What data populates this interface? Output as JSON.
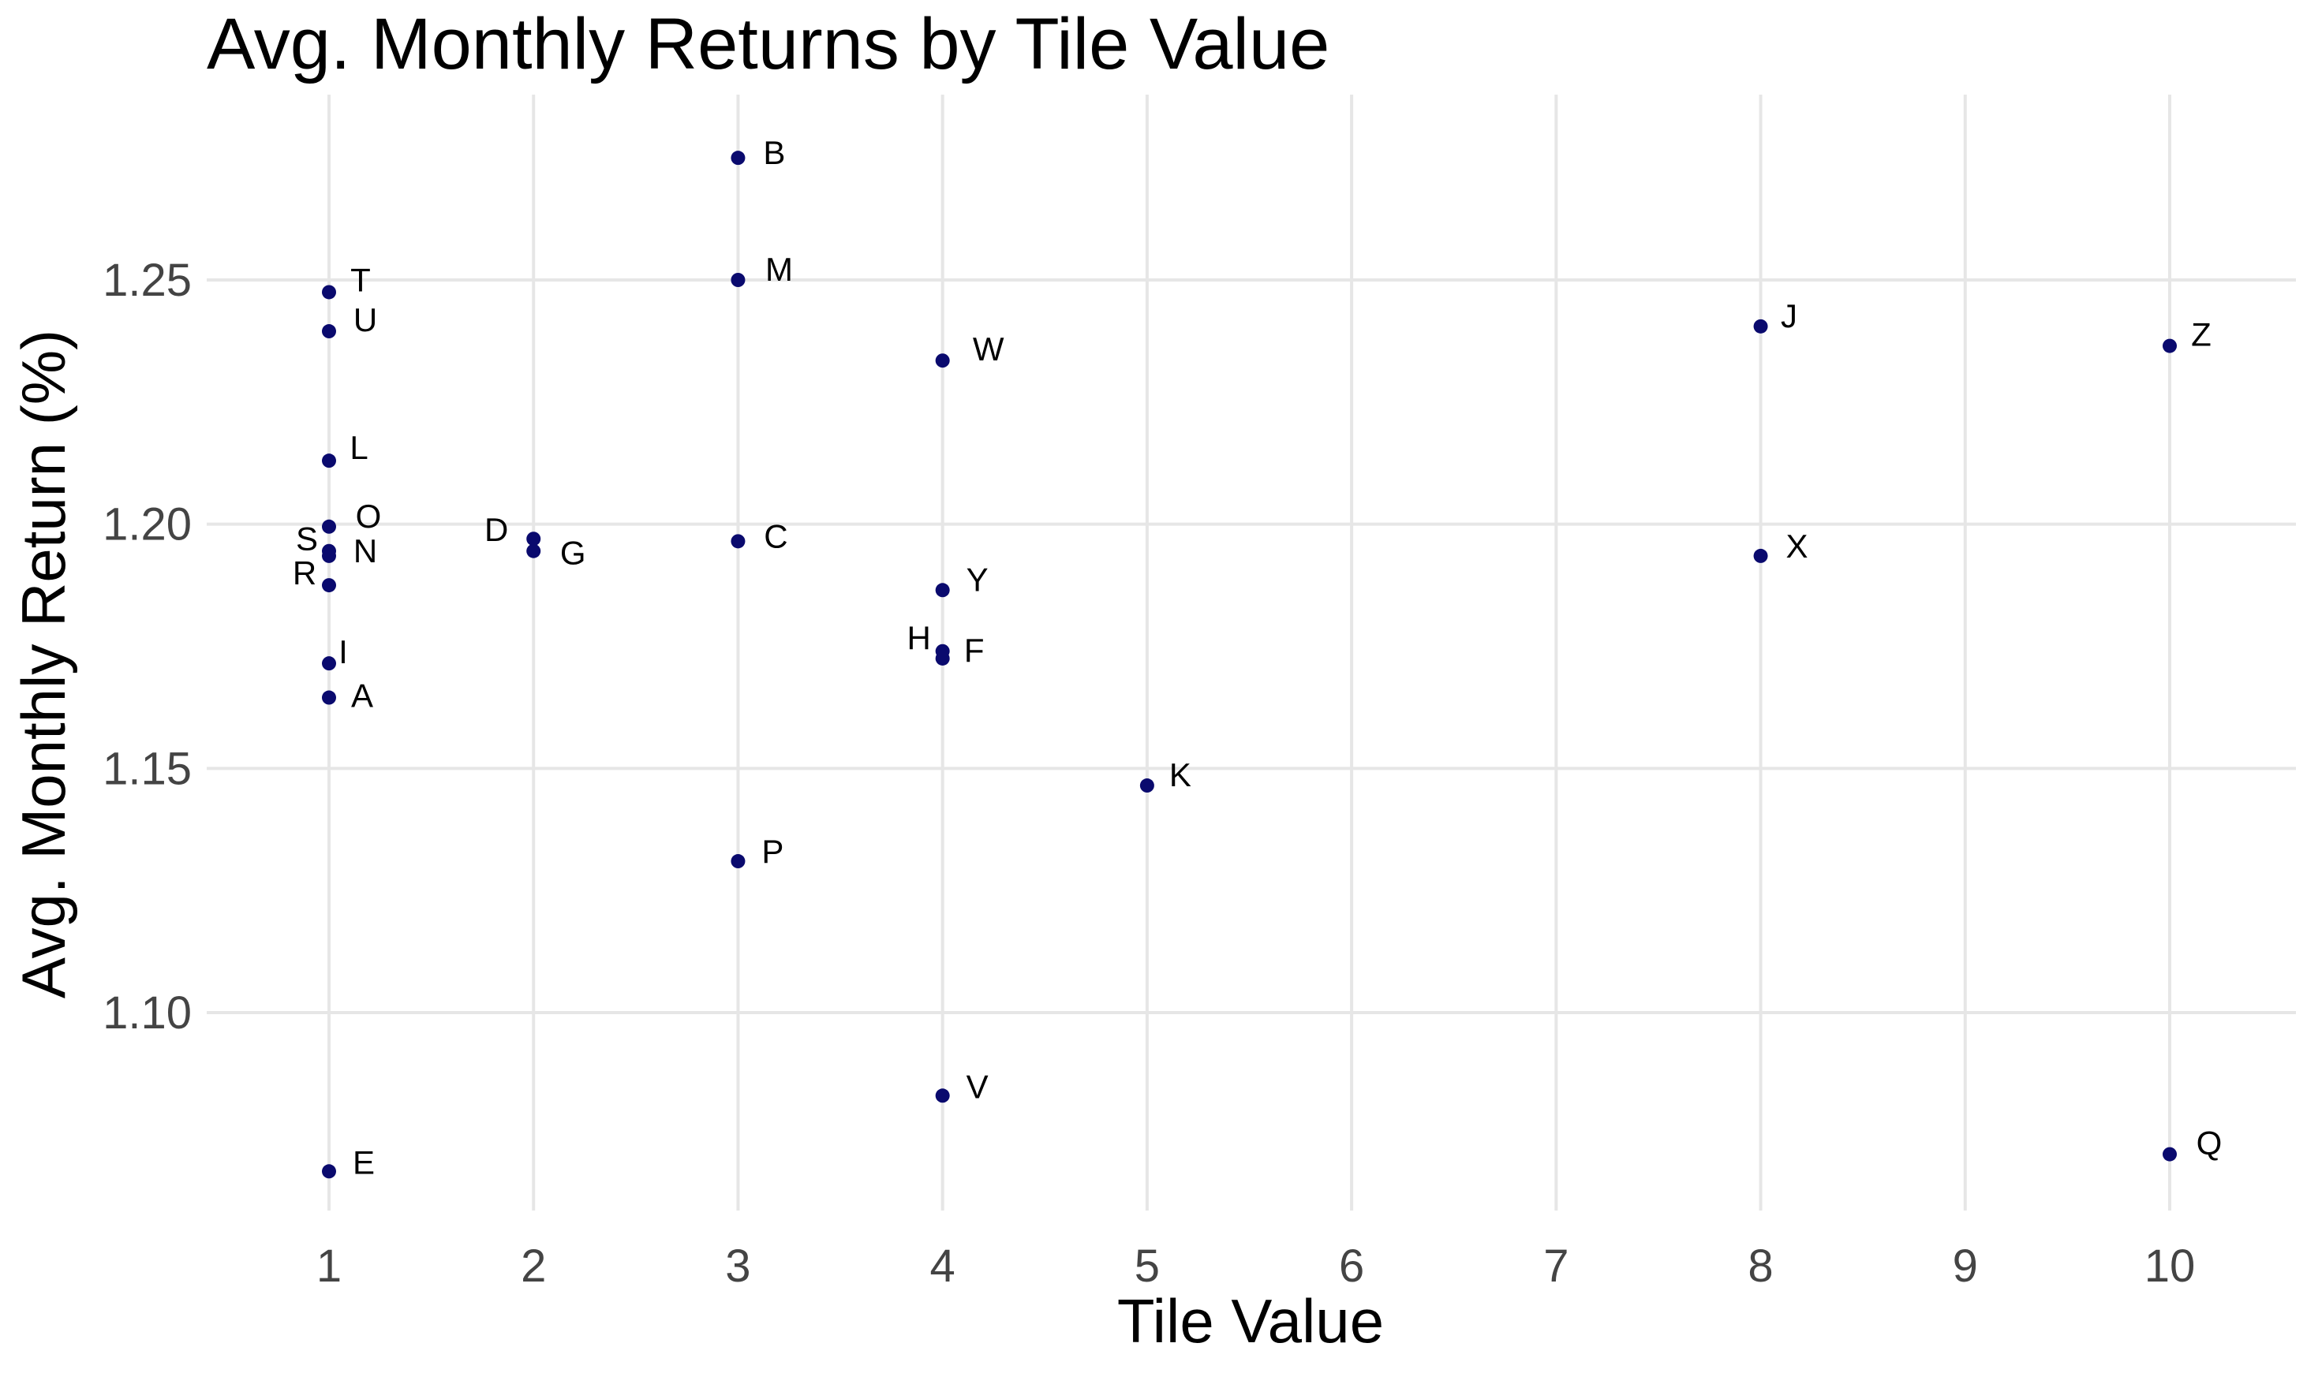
{
  "chart_data": {
    "type": "scatter",
    "title": "Avg. Monthly Returns by Tile Value",
    "xlabel": "Tile Value",
    "ylabel": "Avg. Monthly Return (%)",
    "xlim": [
      0.45,
      10.6
    ],
    "ylim": [
      1.061,
      1.283
    ],
    "x_ticks": [
      1,
      2,
      3,
      4,
      5,
      6,
      7,
      8,
      9,
      10
    ],
    "x_tick_labels": [
      "1",
      "2",
      "3",
      "4",
      "5",
      "6",
      "7",
      "8",
      "9",
      "10"
    ],
    "y_ticks": [
      1.1,
      1.15,
      1.2,
      1.25
    ],
    "y_tick_labels": [
      "1.10",
      "1.15",
      "1.20",
      "1.25"
    ],
    "grid": true,
    "legend": "none",
    "point_color": "#0a0a6e",
    "series": [
      {
        "points": [
          {
            "label": "A",
            "x": 1,
            "y": 1.1645
          },
          {
            "label": "B",
            "x": 3,
            "y": 1.275
          },
          {
            "label": "C",
            "x": 3,
            "y": 1.1965
          },
          {
            "label": "D",
            "x": 2,
            "y": 1.197
          },
          {
            "label": "E",
            "x": 1,
            "y": 1.0675
          },
          {
            "label": "F",
            "x": 4,
            "y": 1.1725
          },
          {
            "label": "G",
            "x": 2,
            "y": 1.1945
          },
          {
            "label": "H",
            "x": 4,
            "y": 1.174
          },
          {
            "label": "I",
            "x": 1,
            "y": 1.1715
          },
          {
            "label": "J",
            "x": 8,
            "y": 1.2405
          },
          {
            "label": "K",
            "x": 5,
            "y": 1.1465
          },
          {
            "label": "L",
            "x": 1,
            "y": 1.213
          },
          {
            "label": "M",
            "x": 3,
            "y": 1.25
          },
          {
            "label": "N",
            "x": 1,
            "y": 1.1935
          },
          {
            "label": "O",
            "x": 1,
            "y": 1.1995
          },
          {
            "label": "P",
            "x": 3,
            "y": 1.131
          },
          {
            "label": "Q",
            "x": 10,
            "y": 1.071
          },
          {
            "label": "R",
            "x": 1,
            "y": 1.1875
          },
          {
            "label": "S",
            "x": 1,
            "y": 1.1945
          },
          {
            "label": "T",
            "x": 1,
            "y": 1.2475
          },
          {
            "label": "U",
            "x": 1,
            "y": 1.2395
          },
          {
            "label": "V",
            "x": 4,
            "y": 1.083
          },
          {
            "label": "W",
            "x": 4,
            "y": 1.2335
          },
          {
            "label": "X",
            "x": 8,
            "y": 1.1935
          },
          {
            "label": "Y",
            "x": 4,
            "y": 1.1865
          },
          {
            "label": "Z",
            "x": 10,
            "y": 1.2365
          }
        ]
      }
    ]
  }
}
